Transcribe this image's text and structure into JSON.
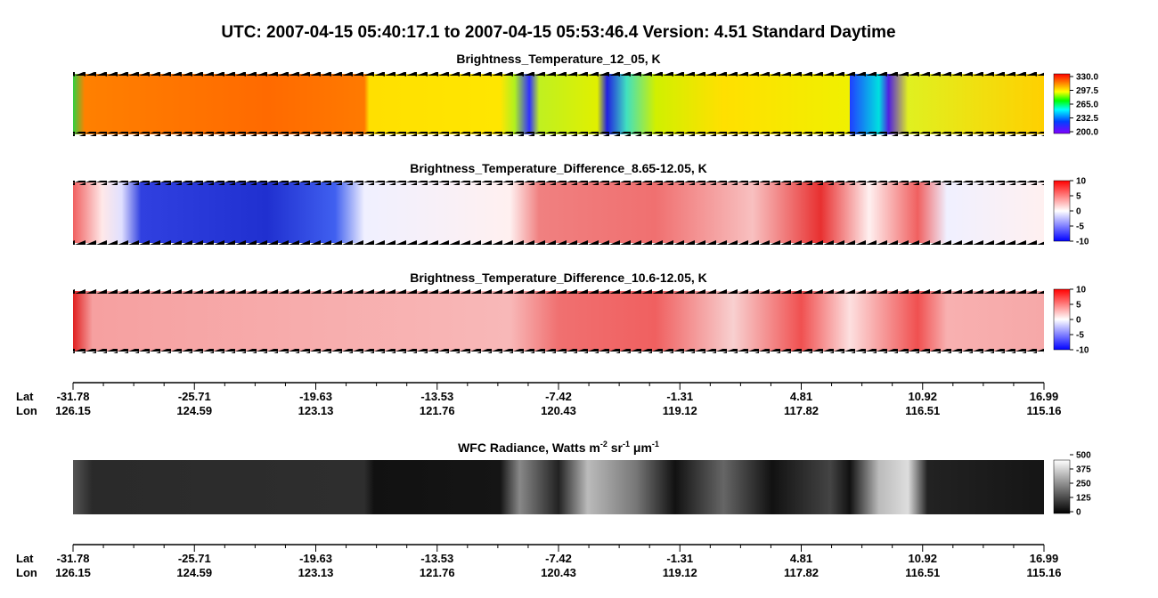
{
  "title": "UTC:  2007-04-15   05:40:17.1  to  2007-04-15   05:53:46.4    Version: 4.51  Standard Daytime",
  "panels": [
    {
      "title": "Brightness_Temperature_12_05, K",
      "colorbar": [
        "330.0",
        "297.5",
        "265.0",
        "232.5",
        "200.0"
      ]
    },
    {
      "title": "Brightness_Temperature_Difference_8.65-12.05, K",
      "colorbar": [
        "10",
        "5",
        "0",
        "-5",
        "-10"
      ]
    },
    {
      "title": "Brightness_Temperature_Difference_10.6-12.05, K",
      "colorbar": [
        "10",
        "5",
        "0",
        "-5",
        "-10"
      ]
    },
    {
      "title_parts": [
        {
          "text": "WFC Radiance, Watts m"
        },
        {
          "sup": "-2"
        },
        {
          "text": " sr"
        },
        {
          "sup": "-1"
        },
        {
          "text": " μm"
        },
        {
          "sup": "-1"
        }
      ],
      "colorbar": [
        "500",
        "375",
        "250",
        "125",
        "0"
      ]
    }
  ],
  "axes": [
    {
      "row_labels": [
        "Lat",
        "Lon"
      ],
      "lat": [
        "-31.78",
        "-25.71",
        "-19.63",
        "-13.53",
        "-7.42",
        "-1.31",
        "4.81",
        "10.92",
        "16.99"
      ],
      "lon": [
        "126.15",
        "124.59",
        "123.13",
        "121.76",
        "120.43",
        "119.12",
        "117.82",
        "116.51",
        "115.16"
      ]
    },
    {
      "row_labels": [
        "Lat",
        "Lon"
      ],
      "lat": [
        "-31.78",
        "-25.71",
        "-19.63",
        "-13.53",
        "-7.42",
        "-1.31",
        "4.81",
        "10.92",
        "16.99"
      ],
      "lon": [
        "126.15",
        "124.59",
        "123.13",
        "121.76",
        "120.43",
        "119.12",
        "117.82",
        "116.51",
        "115.16"
      ]
    }
  ]
}
